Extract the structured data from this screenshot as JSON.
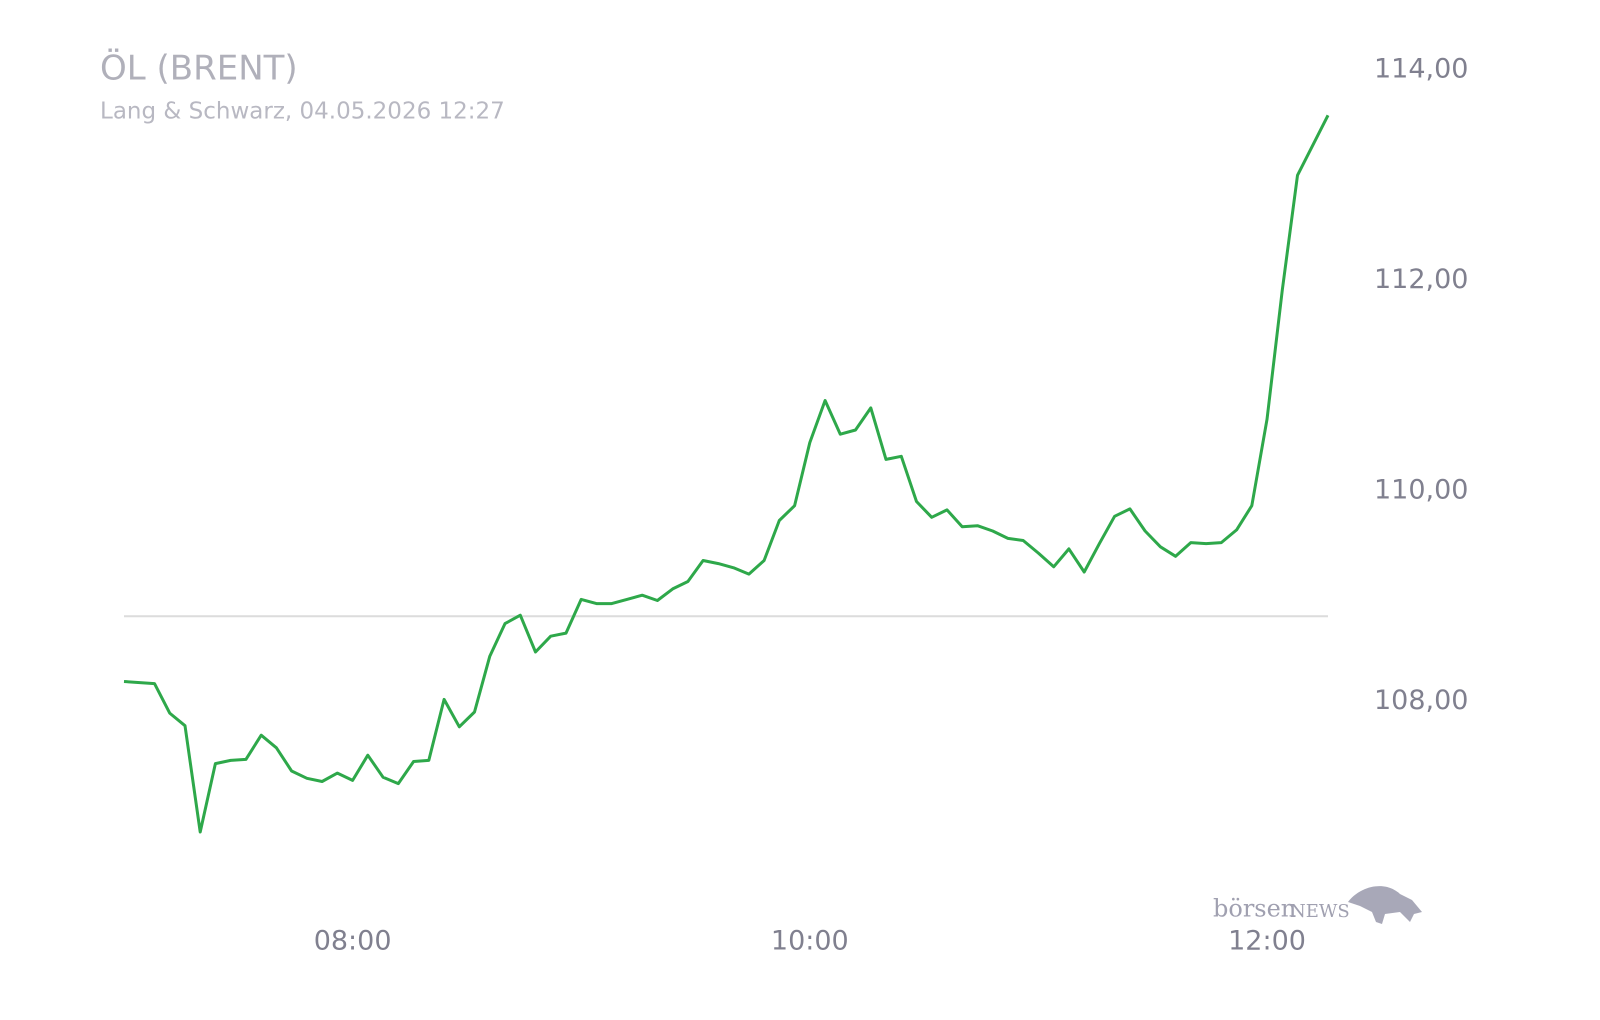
{
  "chart_data": {
    "type": "line",
    "title": "ÖL (BRENT)",
    "subtitle": "Lang & Schwarz, 04.05.2026 12:27",
    "x": [
      "07:00",
      "07:08",
      "07:12",
      "07:16",
      "07:20",
      "07:24",
      "07:28",
      "07:32",
      "07:36",
      "07:40",
      "07:44",
      "07:48",
      "07:52",
      "07:56",
      "08:00",
      "08:04",
      "08:08",
      "08:12",
      "08:16",
      "08:20",
      "08:24",
      "08:28",
      "08:32",
      "08:36",
      "08:40",
      "08:44",
      "08:48",
      "08:52",
      "08:56",
      "09:00",
      "09:04",
      "09:08",
      "09:12",
      "09:16",
      "09:20",
      "09:24",
      "09:28",
      "09:32",
      "09:36",
      "09:40",
      "09:44",
      "09:48",
      "09:52",
      "09:56",
      "10:00",
      "10:04",
      "10:08",
      "10:12",
      "10:16",
      "10:20",
      "10:24",
      "10:28",
      "10:32",
      "10:36",
      "10:40",
      "10:44",
      "10:48",
      "10:52",
      "10:56",
      "11:00",
      "11:04",
      "11:08",
      "11:12",
      "11:16",
      "11:20",
      "11:24",
      "11:28",
      "11:32",
      "11:36",
      "11:40",
      "11:44",
      "11:48",
      "11:52",
      "11:56",
      "12:00",
      "12:04",
      "12:08",
      "12:16"
    ],
    "values": [
      108.19,
      108.17,
      107.89,
      107.77,
      106.76,
      107.41,
      107.44,
      107.45,
      107.68,
      107.56,
      107.34,
      107.27,
      107.24,
      107.32,
      107.25,
      107.49,
      107.28,
      107.22,
      107.43,
      107.44,
      108.02,
      107.76,
      107.9,
      108.43,
      108.74,
      108.82,
      108.47,
      108.62,
      108.65,
      108.97,
      108.93,
      108.93,
      108.97,
      109.01,
      108.96,
      109.07,
      109.14,
      109.34,
      109.31,
      109.27,
      109.21,
      109.34,
      109.72,
      109.86,
      110.46,
      110.86,
      110.54,
      110.58,
      110.79,
      110.3,
      110.33,
      109.9,
      109.75,
      109.82,
      109.66,
      109.67,
      109.62,
      109.55,
      109.53,
      109.41,
      109.28,
      109.45,
      109.23,
      109.5,
      109.76,
      109.83,
      109.62,
      109.47,
      109.38,
      109.51,
      109.5,
      109.51,
      109.63,
      109.86,
      110.68,
      111.91,
      113.0,
      113.57
    ],
    "color": "#2ea84a",
    "reference_line": 108.81,
    "xlim": [
      "07:00",
      "12:16"
    ],
    "xticks": [
      "08:00",
      "10:00",
      "12:00"
    ],
    "ylim": [
      106,
      114
    ],
    "yticks": [
      {
        "value": 108,
        "label": "108,00"
      },
      {
        "value": 110,
        "label": "110,00"
      },
      {
        "value": 112,
        "label": "112,00"
      },
      {
        "value": 114,
        "label": "114,00"
      }
    ],
    "logo": {
      "brand": "börsen",
      "suffix": "NEWS"
    }
  }
}
